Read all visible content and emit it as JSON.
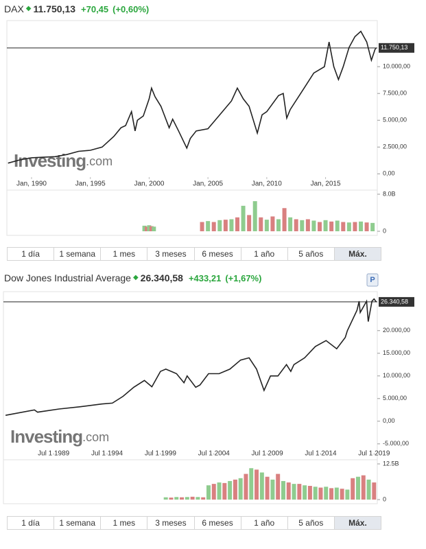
{
  "chart_data": [
    {
      "type": "line",
      "title": "DAX",
      "price": "11.750,13",
      "change": "+70,45",
      "change_pct": "(+0,60%)",
      "x": [
        1988,
        1989,
        1990,
        1991,
        1992,
        1993,
        1994,
        1995,
        1996,
        1997,
        1997.6,
        1998,
        1998.5,
        1998.8,
        1999,
        1999.5,
        2000,
        2000.2,
        2000.5,
        2001,
        2001.7,
        2002,
        2002.5,
        2003.2,
        2003.5,
        2004,
        2005,
        2006,
        2007,
        2007.5,
        2008,
        2008.5,
        2009.2,
        2009.6,
        2010,
        2011,
        2011.4,
        2011.7,
        2012,
        2013,
        2014,
        2014.9,
        2015.3,
        2015.7,
        2016.1,
        2016.5,
        2017,
        2017.5,
        2018,
        2018.5,
        2018.9,
        2019.2,
        2019.3
      ],
      "values": [
        1000,
        1300,
        1500,
        1550,
        1600,
        1800,
        2100,
        2200,
        2500,
        3500,
        4300,
        4500,
        5800,
        4000,
        5000,
        5400,
        7000,
        8000,
        7200,
        6300,
        4300,
        5100,
        4000,
        2400,
        3300,
        4000,
        4200,
        5500,
        6800,
        8000,
        7000,
        6300,
        3800,
        5500,
        5800,
        7300,
        7500,
        5200,
        6000,
        7700,
        9400,
        10000,
        12300,
        10000,
        8800,
        10000,
        11800,
        12800,
        13300,
        12300,
        10600,
        11600,
        11750
      ],
      "color": "#222222",
      "last_value": 11750.13,
      "xlim": [
        1987.9,
        2019.4
      ],
      "xticks": [
        {
          "value": 1990,
          "label": "Jan, 1990"
        },
        {
          "value": 1995,
          "label": "Jan, 1995"
        },
        {
          "value": 2000,
          "label": "Jan, 2000"
        },
        {
          "value": 2005,
          "label": "Jan, 2005"
        },
        {
          "value": 2010,
          "label": "Jan, 2010"
        },
        {
          "value": 2015,
          "label": "Jan, 2015"
        }
      ],
      "ylim": [
        -300,
        14300
      ],
      "yticks": [
        {
          "value": 0,
          "label": "0,00"
        },
        {
          "value": 2500,
          "label": "2.500,00"
        },
        {
          "value": 5000,
          "label": "5.000,00"
        },
        {
          "value": 7500,
          "label": "7.500,00"
        },
        {
          "value": 10000,
          "label": "10.000,00"
        }
      ],
      "volume": {
        "x": [
          1999.6,
          1999.8,
          2000,
          2000.2,
          2000.4,
          2004.5,
          2005,
          2005.5,
          2006,
          2006.5,
          2007,
          2007.5,
          2008,
          2008.5,
          2009,
          2009.5,
          2010,
          2010.5,
          2011,
          2011.5,
          2012,
          2012.5,
          2013,
          2013.5,
          2014,
          2014.5,
          2015,
          2015.5,
          2016,
          2016.5,
          2017,
          2017.5,
          2018,
          2018.5,
          2019
        ],
        "values": [
          1.2,
          1.0,
          1.3,
          1.1,
          1.0,
          2.0,
          2.2,
          2.0,
          2.4,
          2.5,
          2.6,
          3.0,
          5.5,
          3.5,
          6.5,
          3.0,
          2.5,
          3.2,
          2.6,
          5.0,
          3.0,
          2.6,
          2.4,
          2.6,
          2.3,
          2.0,
          2.4,
          2.1,
          2.3,
          2.0,
          1.9,
          2.0,
          2.1,
          1.9,
          1.8
        ],
        "colors": [
          "#8fcc8f",
          "#d98080"
        ],
        "ylim": [
          0,
          8
        ],
        "yticks": [
          0,
          {
            "value": 8,
            "label": "8.0B"
          }
        ]
      },
      "watermark": [
        "Investing",
        ".com"
      ]
    },
    {
      "type": "line",
      "title": "Dow Jones Industrial Average",
      "price": "26.340,58",
      "change": "+433,21",
      "change_pct": "(+1,67%)",
      "marker": "P",
      "x": [
        1985,
        1987.7,
        1988,
        1990,
        1992,
        1994,
        1995,
        1996,
        1997,
        1998,
        1998.7,
        1999.5,
        2000,
        2001,
        2001.7,
        2002,
        2002.8,
        2003.2,
        2004,
        2005,
        2006,
        2007,
        2007.8,
        2008.5,
        2009.2,
        2009.8,
        2010.5,
        2011.3,
        2011.7,
        2012,
        2013,
        2014,
        2015,
        2016,
        2016.8,
        2017,
        2017.9,
        2018.1,
        2018.2,
        2018.8,
        2018.95,
        2019.3,
        2019.5,
        2019.7
      ],
      "values": [
        1300,
        2500,
        2000,
        2700,
        3200,
        3800,
        4000,
        5500,
        7500,
        9000,
        7600,
        11000,
        11500,
        10500,
        8500,
        10000,
        7500,
        8000,
        10500,
        10500,
        11500,
        13500,
        14000,
        11500,
        6800,
        10000,
        10000,
        12500,
        11000,
        12500,
        14000,
        16500,
        17800,
        16000,
        18500,
        20000,
        24500,
        26500,
        24000,
        26500,
        22000,
        26500,
        27000,
        26340
      ],
      "color": "#222222",
      "last_value": 26340.58,
      "xlim": [
        1984.8,
        2019.8
      ],
      "xticks": [
        {
          "value": 1989.5,
          "label": "Jul 1 1989"
        },
        {
          "value": 1994.5,
          "label": "Jul 1 1994"
        },
        {
          "value": 1999.5,
          "label": "Jul 1 1999"
        },
        {
          "value": 2004.5,
          "label": "Jul 1 2004"
        },
        {
          "value": 2009.5,
          "label": "Jul 1 2009"
        },
        {
          "value": 2014.5,
          "label": "Jul 1 2014"
        },
        {
          "value": 2019.5,
          "label": "Jul 1 2019"
        }
      ],
      "ylim": [
        -7000,
        28600
      ],
      "yticks": [
        {
          "value": -5000,
          "label": "-5.000,00"
        },
        {
          "value": 0,
          "label": "0,00"
        },
        {
          "value": 5000,
          "label": "5.000,00"
        },
        {
          "value": 10000,
          "label": "10.000,00"
        },
        {
          "value": 15000,
          "label": "15.000,00"
        },
        {
          "value": 20000,
          "label": "20.000,00"
        }
      ],
      "volume": {
        "x": [
          2000,
          2000.5,
          2001,
          2001.5,
          2002,
          2002.5,
          2003,
          2003.5,
          2004,
          2004.5,
          2005,
          2005.5,
          2006,
          2006.5,
          2007,
          2007.5,
          2008,
          2008.5,
          2009,
          2009.5,
          2010,
          2010.5,
          2011,
          2011.5,
          2012,
          2012.5,
          2013,
          2013.5,
          2014,
          2014.5,
          2015,
          2015.5,
          2016,
          2016.5,
          2017,
          2017.5,
          2018,
          2018.5,
          2019,
          2019.5
        ],
        "values": [
          0.8,
          0.7,
          0.9,
          0.8,
          0.9,
          1.0,
          0.9,
          0.8,
          5,
          5.5,
          6,
          5.8,
          6.5,
          7,
          7.5,
          9,
          11,
          10.5,
          9.5,
          8,
          7,
          9,
          6.5,
          6,
          5.5,
          5.5,
          5,
          4.8,
          4.5,
          4.2,
          4.5,
          4.0,
          4.2,
          3.8,
          3.5,
          7.5,
          8,
          8.5,
          7,
          6
        ],
        "colors": [
          "#8fcc8f",
          "#d98080"
        ],
        "ylim": [
          0,
          12.5
        ],
        "yticks": [
          0,
          {
            "value": 12.5,
            "label": "12.5B"
          }
        ]
      },
      "watermark": [
        "Investing",
        ".com"
      ]
    }
  ],
  "buttons": [
    "1 día",
    "1 semana",
    "1 mes",
    "3 meses",
    "6 meses",
    "1 año",
    "5 años",
    "Máx."
  ]
}
